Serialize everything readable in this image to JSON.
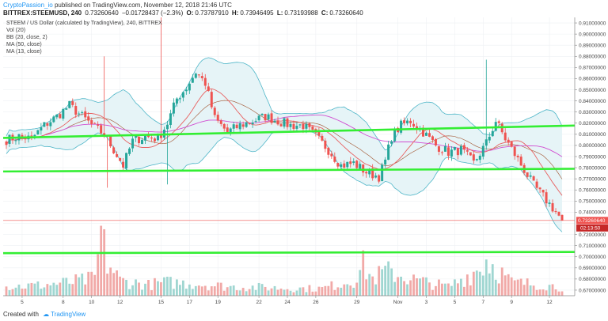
{
  "header": {
    "author": "CryptoPassion_io",
    "published": "published on TradingView.com, November 12, 2018 21:46 UTC"
  },
  "ticker": {
    "symbol": "BITTREX:STEEMUSD, 240",
    "last": "0.73260640",
    "change": "−0.01728437 (−2.3%)",
    "o_label": "O:",
    "o": "0.73787910",
    "h_label": "H:",
    "h": "0.73946495",
    "l_label": "L:",
    "l": "0.73193988",
    "c_label": "C:",
    "c": "0.73260640"
  },
  "legend": [
    "STEEM / US Dollar (calculated by TradingView), 240, BITTREX",
    "Vol (20)",
    "BB (20, close, 2)",
    "MA (50, close)",
    "MA (13, close)"
  ],
  "price_tag": {
    "value": "0.73260640",
    "countdown": "02:13:50"
  },
  "footer": {
    "created": "Created with",
    "brand": "TradingView"
  },
  "colors": {
    "up": "#26a69a",
    "down": "#ef5350",
    "green_line": "#33ee33",
    "bb": "#4fb6c8",
    "ma50": "#d14ed1",
    "ma13": "#e86060"
  },
  "chart_data": {
    "type": "candlestick",
    "title": "STEEM / US Dollar (calculated by TradingView), 240, BITTREX",
    "ylim": [
      0.665,
      0.915
    ],
    "y_ticks": [
      "0.91000000",
      "0.90000000",
      "0.89000000",
      "0.88000000",
      "0.87000000",
      "0.86000000",
      "0.85000000",
      "0.84000000",
      "0.83000000",
      "0.82000000",
      "0.81000000",
      "0.80000000",
      "0.79000000",
      "0.78000000",
      "0.77000000",
      "0.76000000",
      "0.75000000",
      "0.74000000",
      "0.73000000",
      "0.72000000",
      "0.71000000",
      "0.70000000",
      "0.69000000",
      "0.68000000",
      "0.67000000"
    ],
    "y_tick_values": [
      0.91,
      0.9,
      0.89,
      0.88,
      0.87,
      0.86,
      0.85,
      0.84,
      0.83,
      0.82,
      0.81,
      0.8,
      0.79,
      0.78,
      0.77,
      0.76,
      0.75,
      0.74,
      0.73,
      0.72,
      0.71,
      0.7,
      0.69,
      0.68,
      0.67
    ],
    "x_ticks": [
      "5",
      "8",
      "10",
      "12",
      "15",
      "17",
      "19",
      "22",
      "24",
      "26",
      "29",
      "Nov",
      "3",
      "5",
      "7",
      "9",
      "12"
    ],
    "x_tick_bars": [
      5,
      18,
      27,
      36,
      49,
      58,
      67,
      80,
      89,
      98,
      111,
      124,
      133,
      142,
      151,
      160,
      172
    ],
    "horizontal_lines": [
      {
        "from_bar": 0,
        "to_bar": 176,
        "y_start": 0.8067,
        "y_end": 0.8178
      },
      {
        "from_bar": 0,
        "to_bar": 176,
        "y_start": 0.7766,
        "y_end": 0.779
      },
      {
        "from_bar": 0,
        "to_bar": 176,
        "y_start": 0.7032,
        "y_end": 0.7043
      }
    ],
    "close_anchors": [
      [
        0,
        0.805
      ],
      [
        4,
        0.808
      ],
      [
        8,
        0.806
      ],
      [
        12,
        0.818
      ],
      [
        16,
        0.826
      ],
      [
        20,
        0.836
      ],
      [
        24,
        0.826
      ],
      [
        28,
        0.816
      ],
      [
        31,
        0.81
      ],
      [
        34,
        0.796
      ],
      [
        37,
        0.782
      ],
      [
        40,
        0.804
      ],
      [
        44,
        0.808
      ],
      [
        48,
        0.806
      ],
      [
        51,
        0.82
      ],
      [
        54,
        0.842
      ],
      [
        57,
        0.852
      ],
      [
        60,
        0.866
      ],
      [
        63,
        0.856
      ],
      [
        66,
        0.824
      ],
      [
        70,
        0.812
      ],
      [
        74,
        0.818
      ],
      [
        78,
        0.822
      ],
      [
        82,
        0.826
      ],
      [
        86,
        0.822
      ],
      [
        90,
        0.818
      ],
      [
        94,
        0.818
      ],
      [
        98,
        0.808
      ],
      [
        102,
        0.796
      ],
      [
        106,
        0.782
      ],
      [
        110,
        0.784
      ],
      [
        114,
        0.776
      ],
      [
        118,
        0.772
      ],
      [
        120,
        0.786
      ],
      [
        122,
        0.808
      ],
      [
        125,
        0.818
      ],
      [
        128,
        0.822
      ],
      [
        132,
        0.812
      ],
      [
        136,
        0.8
      ],
      [
        140,
        0.794
      ],
      [
        144,
        0.796
      ],
      [
        148,
        0.784
      ],
      [
        152,
        0.802
      ],
      [
        155,
        0.822
      ],
      [
        158,
        0.806
      ],
      [
        161,
        0.792
      ],
      [
        164,
        0.778
      ],
      [
        167,
        0.764
      ],
      [
        170,
        0.754
      ],
      [
        173,
        0.744
      ],
      [
        176,
        0.7326
      ]
    ],
    "volume_anchors": [
      [
        0,
        0.15
      ],
      [
        10,
        0.17
      ],
      [
        20,
        0.22
      ],
      [
        28,
        0.28
      ],
      [
        30,
        1.0
      ],
      [
        32,
        0.55
      ],
      [
        36,
        0.25
      ],
      [
        45,
        0.18
      ],
      [
        50,
        0.22
      ],
      [
        60,
        0.2
      ],
      [
        70,
        0.15
      ],
      [
        80,
        0.14
      ],
      [
        90,
        0.12
      ],
      [
        100,
        0.12
      ],
      [
        110,
        0.26
      ],
      [
        113,
        0.5
      ],
      [
        116,
        0.28
      ],
      [
        120,
        0.4
      ],
      [
        124,
        0.35
      ],
      [
        130,
        0.25
      ],
      [
        140,
        0.15
      ],
      [
        150,
        0.45
      ],
      [
        152,
        0.6
      ],
      [
        160,
        0.22
      ],
      [
        170,
        0.18
      ],
      [
        176,
        0.14
      ]
    ],
    "spikes": [
      {
        "bar": 49,
        "high": 0.915
      },
      {
        "bar": 31,
        "high": 0.88
      },
      {
        "bar": 152,
        "high": 0.877
      },
      {
        "bar": 51,
        "low": 0.765
      },
      {
        "bar": 32,
        "low": 0.762
      }
    ]
  }
}
